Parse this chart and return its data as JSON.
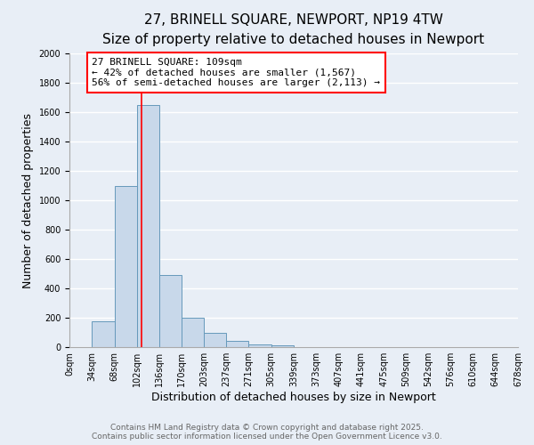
{
  "title": "27, BRINELL SQUARE, NEWPORT, NP19 4TW",
  "subtitle": "Size of property relative to detached houses in Newport",
  "xlabel": "Distribution of detached houses by size in Newport",
  "ylabel": "Number of detached properties",
  "bar_color": "#c8d8ea",
  "bar_edge_color": "#6699bb",
  "background_color": "#e8eef6",
  "grid_color": "white",
  "ylim": [
    0,
    2000
  ],
  "yticks": [
    0,
    200,
    400,
    600,
    800,
    1000,
    1200,
    1400,
    1600,
    1800,
    2000
  ],
  "bin_edges": [
    0,
    34,
    68,
    102,
    136,
    170,
    203,
    237,
    271,
    305,
    339,
    373,
    407,
    441,
    475,
    509,
    542,
    576,
    610,
    644,
    678
  ],
  "bin_labels": [
    "0sqm",
    "34sqm",
    "68sqm",
    "102sqm",
    "136sqm",
    "170sqm",
    "203sqm",
    "237sqm",
    "271sqm",
    "305sqm",
    "339sqm",
    "373sqm",
    "407sqm",
    "441sqm",
    "475sqm",
    "509sqm",
    "542sqm",
    "576sqm",
    "610sqm",
    "644sqm",
    "678sqm"
  ],
  "bar_heights": [
    0,
    175,
    1100,
    1650,
    490,
    200,
    100,
    40,
    20,
    15,
    0,
    0,
    0,
    0,
    0,
    0,
    0,
    0,
    0,
    0
  ],
  "red_line_x": 109,
  "annotation_title": "27 BRINELL SQUARE: 109sqm",
  "annotation_line1": "← 42% of detached houses are smaller (1,567)",
  "annotation_line2": "56% of semi-detached houses are larger (2,113) →",
  "annotation_box_color": "white",
  "annotation_box_edge_color": "red",
  "footer1": "Contains HM Land Registry data © Crown copyright and database right 2025.",
  "footer2": "Contains public sector information licensed under the Open Government Licence v3.0.",
  "title_fontsize": 11,
  "subtitle_fontsize": 9,
  "axis_label_fontsize": 9,
  "tick_fontsize": 7,
  "annotation_fontsize": 8,
  "footer_fontsize": 6.5
}
